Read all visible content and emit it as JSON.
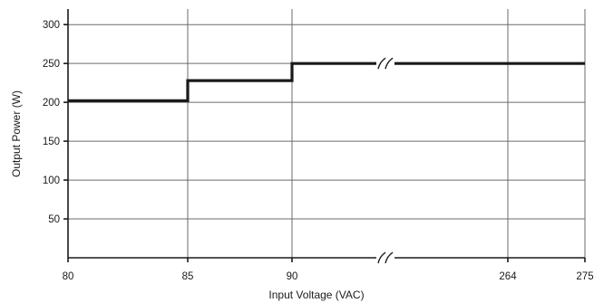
{
  "chart_data": {
    "type": "line",
    "xlabel": "Input Voltage (VAC)",
    "ylabel": "Output Power (W)",
    "x_ticks": [
      80,
      85,
      90,
      264,
      275
    ],
    "y_ticks": [
      50,
      100,
      150,
      200,
      250,
      300
    ],
    "ylim": [
      0,
      320
    ],
    "x_axis_break": "between 90 and 264",
    "grid": true,
    "series": [
      {
        "x": [
          80,
          85,
          85,
          90,
          90,
          264,
          275
        ],
        "y": [
          202,
          202,
          228,
          228,
          250,
          250,
          250
        ]
      }
    ]
  }
}
